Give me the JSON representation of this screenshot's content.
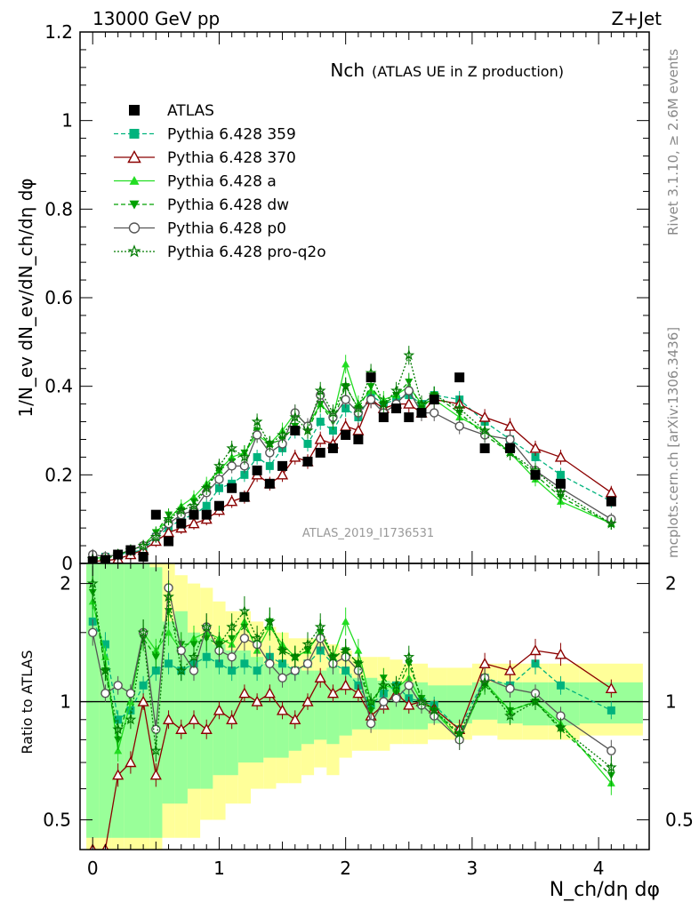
{
  "header": {
    "left": "13000 GeV pp",
    "right": "Z+Jet"
  },
  "chart_data": {
    "type": "line",
    "title": "Nch",
    "subtitle": "(ATLAS UE in Z production)",
    "xlabel": "N_ch/dη dφ",
    "ylabel_main": "1/N_ev dN_ev/dN_ch/dη dφ",
    "ylabel_ratio": "Ratio to ATLAS",
    "xlim": [
      -0.1,
      4.4
    ],
    "ylim_main": [
      0,
      1.2
    ],
    "ylim_ratio": [
      0.42,
      2.25
    ],
    "ratio_scale": "log",
    "xticks": [
      0,
      1,
      2,
      3,
      4
    ],
    "yticks_main": [
      0,
      0.2,
      0.4,
      0.6,
      0.8,
      1,
      1.2
    ],
    "ytick_labels_main": [
      "0",
      "0.2",
      "0.4",
      "0.6",
      "0.8",
      "1",
      "1.2"
    ],
    "yticks_ratio": [
      0.5,
      1,
      2
    ],
    "legend_position": "top-left",
    "analysis_id": "ATLAS_2019_I1736531",
    "side_text_upper": "Rivet 3.1.10, ≥ 2.6M events",
    "side_text_lower": "mcplots.cern.ch [arXiv:1306.3436]",
    "x": [
      0.0,
      0.1,
      0.2,
      0.3,
      0.4,
      0.5,
      0.6,
      0.7,
      0.8,
      0.9,
      1.0,
      1.1,
      1.2,
      1.3,
      1.4,
      1.5,
      1.6,
      1.7,
      1.8,
      1.9,
      2.0,
      2.1,
      2.2,
      2.3,
      2.4,
      2.5,
      2.6,
      2.7,
      2.9,
      3.1,
      3.3,
      3.5,
      3.7,
      4.1
    ],
    "data": {
      "name": "ATLAS",
      "color": "#000000",
      "values": [
        0.005,
        0.008,
        0.02,
        0.03,
        0.015,
        0.11,
        0.05,
        0.09,
        0.11,
        0.11,
        0.13,
        0.17,
        0.15,
        0.21,
        0.18,
        0.22,
        0.3,
        0.23,
        0.25,
        0.26,
        0.29,
        0.28,
        0.42,
        0.33,
        0.35,
        0.33,
        0.34,
        0.37,
        0.42,
        0.26,
        0.26,
        0.2,
        0.18,
        0.14
      ]
    },
    "series": [
      {
        "name": "Pythia 6.428 359",
        "color": "#00b37d",
        "marker": "square",
        "dash": "5,3",
        "values": [
          0.01,
          0.015,
          0.02,
          0.025,
          0.03,
          0.06,
          0.08,
          0.1,
          0.11,
          0.13,
          0.17,
          0.18,
          0.2,
          0.24,
          0.22,
          0.26,
          0.3,
          0.27,
          0.32,
          0.3,
          0.35,
          0.33,
          0.38,
          0.36,
          0.37,
          0.38,
          0.36,
          0.38,
          0.37,
          0.32,
          0.28,
          0.24,
          0.2,
          0.14
        ],
        "ratio": [
          1.6,
          1.4,
          0.9,
          0.95,
          1.1,
          1.2,
          1.25,
          1.2,
          1.25,
          1.3,
          1.25,
          1.2,
          1.25,
          1.2,
          1.3,
          1.25,
          1.2,
          1.25,
          1.35,
          1.25,
          1.2,
          1.1,
          0.98,
          1.05,
          1.1,
          1.02,
          1.0,
          0.98,
          0.85,
          1.15,
          1.1,
          1.25,
          1.1,
          0.95
        ]
      },
      {
        "name": "Pythia 6.428 370",
        "color": "#8b0000",
        "marker": "triangle-open",
        "dash": "",
        "values": [
          0.005,
          0.006,
          0.01,
          0.02,
          0.03,
          0.05,
          0.07,
          0.08,
          0.09,
          0.1,
          0.12,
          0.14,
          0.15,
          0.2,
          0.18,
          0.2,
          0.24,
          0.23,
          0.28,
          0.27,
          0.31,
          0.3,
          0.37,
          0.35,
          0.36,
          0.36,
          0.34,
          0.37,
          0.36,
          0.33,
          0.31,
          0.26,
          0.24,
          0.16
        ],
        "ratio": [
          0.3,
          0.35,
          0.65,
          0.7,
          1.0,
          0.65,
          0.9,
          0.85,
          0.9,
          0.85,
          0.95,
          0.9,
          1.05,
          1.0,
          1.05,
          0.95,
          0.9,
          1.0,
          1.15,
          1.05,
          1.1,
          1.05,
          0.92,
          0.98,
          1.05,
          0.98,
          1.0,
          0.96,
          0.85,
          1.25,
          1.2,
          1.35,
          1.32,
          1.08
        ]
      },
      {
        "name": "Pythia 6.428 a",
        "color": "#22dd22",
        "marker": "triangle",
        "dash": "",
        "values": [
          0.01,
          0.015,
          0.02,
          0.03,
          0.04,
          0.07,
          0.1,
          0.13,
          0.15,
          0.18,
          0.21,
          0.24,
          0.25,
          0.29,
          0.27,
          0.3,
          0.34,
          0.31,
          0.36,
          0.33,
          0.45,
          0.36,
          0.39,
          0.37,
          0.38,
          0.4,
          0.36,
          0.37,
          0.33,
          0.3,
          0.25,
          0.19,
          0.14,
          0.09
        ],
        "ratio": [
          1.8,
          1.3,
          0.75,
          1.0,
          1.5,
          1.35,
          1.5,
          1.35,
          1.45,
          1.5,
          1.45,
          1.4,
          1.6,
          1.35,
          1.55,
          1.4,
          1.3,
          1.35,
          1.5,
          1.3,
          1.6,
          1.35,
          1.0,
          1.1,
          1.08,
          1.15,
          1.0,
          0.95,
          0.8,
          1.12,
          0.95,
          1.0,
          0.88,
          0.62
        ]
      },
      {
        "name": "Pythia 6.428 dw",
        "color": "#00a000",
        "marker": "triangle-down",
        "dash": "5,3",
        "values": [
          0.005,
          0.01,
          0.02,
          0.03,
          0.04,
          0.07,
          0.11,
          0.12,
          0.14,
          0.17,
          0.21,
          0.23,
          0.25,
          0.3,
          0.27,
          0.28,
          0.31,
          0.3,
          0.36,
          0.32,
          0.4,
          0.35,
          0.4,
          0.36,
          0.38,
          0.41,
          0.35,
          0.38,
          0.34,
          0.29,
          0.25,
          0.2,
          0.15,
          0.09
        ],
        "ratio": [
          1.9,
          1.2,
          0.8,
          1.05,
          1.45,
          1.3,
          1.7,
          1.4,
          1.4,
          1.45,
          1.4,
          1.45,
          1.55,
          1.4,
          1.6,
          1.35,
          1.3,
          1.35,
          1.5,
          1.3,
          1.35,
          1.25,
          0.95,
          1.15,
          1.05,
          1.25,
          1.02,
          0.95,
          0.82,
          1.1,
          0.95,
          1.0,
          0.85,
          0.65
        ]
      },
      {
        "name": "Pythia 6.428 p0",
        "color": "#555555",
        "marker": "circle-open",
        "dash": "",
        "values": [
          0.02,
          0.015,
          0.02,
          0.03,
          0.04,
          0.06,
          0.09,
          0.11,
          0.12,
          0.16,
          0.19,
          0.22,
          0.22,
          0.29,
          0.25,
          0.27,
          0.34,
          0.31,
          0.38,
          0.33,
          0.37,
          0.34,
          0.37,
          0.34,
          0.36,
          0.39,
          0.34,
          0.34,
          0.31,
          0.29,
          0.28,
          0.21,
          0.17,
          0.1
        ],
        "ratio": [
          1.5,
          1.05,
          1.1,
          1.05,
          1.5,
          0.85,
          1.95,
          1.35,
          1.2,
          1.55,
          1.35,
          1.3,
          1.45,
          1.4,
          1.25,
          1.15,
          1.2,
          1.25,
          1.45,
          1.25,
          1.3,
          1.2,
          0.88,
          1.0,
          1.02,
          1.1,
          0.98,
          0.92,
          0.8,
          1.15,
          1.08,
          1.05,
          0.92,
          0.75
        ]
      },
      {
        "name": "Pythia 6.428 pro-q2o",
        "color": "#007a00",
        "marker": "star",
        "dash": "2,2",
        "values": [
          0.01,
          0.01,
          0.02,
          0.03,
          0.04,
          0.06,
          0.1,
          0.12,
          0.13,
          0.17,
          0.22,
          0.26,
          0.24,
          0.32,
          0.27,
          0.29,
          0.33,
          0.3,
          0.39,
          0.34,
          0.4,
          0.35,
          0.43,
          0.36,
          0.39,
          0.47,
          0.36,
          0.38,
          0.35,
          0.3,
          0.25,
          0.21,
          0.16,
          0.09
        ],
        "ratio": [
          2.0,
          1.2,
          0.85,
          0.9,
          1.5,
          0.75,
          1.85,
          1.2,
          1.3,
          1.55,
          1.4,
          1.55,
          1.7,
          1.45,
          1.6,
          1.35,
          1.3,
          1.4,
          1.55,
          1.3,
          1.35,
          1.25,
          1.0,
          1.1,
          1.1,
          1.3,
          1.0,
          0.95,
          0.83,
          1.12,
          0.92,
          1.0,
          0.86,
          0.68
        ]
      }
    ],
    "bands": {
      "x_edges": [
        -0.05,
        0.05,
        0.15,
        0.25,
        0.35,
        0.45,
        0.55,
        0.65,
        0.75,
        0.85,
        0.95,
        1.05,
        1.15,
        1.25,
        1.35,
        1.45,
        1.55,
        1.65,
        1.75,
        1.85,
        1.95,
        2.05,
        2.15,
        2.25,
        2.35,
        2.45,
        2.55,
        2.65,
        2.8,
        3.0,
        3.2,
        3.4,
        3.6,
        3.85,
        4.35
      ],
      "green_low": [
        0.45,
        0.45,
        0.45,
        0.45,
        0.45,
        0.45,
        0.55,
        0.55,
        0.6,
        0.6,
        0.65,
        0.65,
        0.7,
        0.7,
        0.72,
        0.72,
        0.75,
        0.78,
        0.8,
        0.78,
        0.82,
        0.85,
        0.85,
        0.85,
        0.85,
        0.85,
        0.85,
        0.88,
        0.88,
        0.9,
        0.88,
        0.87,
        0.87,
        0.88
      ],
      "green_high": [
        2.25,
        2.25,
        2.25,
        2.25,
        2.25,
        2.2,
        1.6,
        1.7,
        1.5,
        1.45,
        1.4,
        1.35,
        1.35,
        1.3,
        1.25,
        1.25,
        1.22,
        1.2,
        1.2,
        1.22,
        1.18,
        1.15,
        1.15,
        1.13,
        1.12,
        1.12,
        1.12,
        1.1,
        1.1,
        1.12,
        1.12,
        1.12,
        1.12,
        1.12
      ],
      "yellow_low": [
        0.42,
        0.42,
        0.42,
        0.42,
        0.42,
        0.42,
        0.45,
        0.45,
        0.45,
        0.5,
        0.5,
        0.55,
        0.55,
        0.6,
        0.6,
        0.62,
        0.62,
        0.65,
        0.68,
        0.65,
        0.72,
        0.75,
        0.75,
        0.75,
        0.78,
        0.78,
        0.78,
        0.8,
        0.8,
        0.82,
        0.8,
        0.8,
        0.8,
        0.82
      ],
      "yellow_high": [
        2.25,
        2.25,
        2.25,
        2.25,
        2.25,
        2.25,
        2.25,
        2.1,
        2.0,
        1.95,
        1.8,
        1.7,
        1.7,
        1.6,
        1.55,
        1.5,
        1.45,
        1.45,
        1.45,
        1.4,
        1.35,
        1.3,
        1.3,
        1.3,
        1.28,
        1.25,
        1.25,
        1.22,
        1.22,
        1.25,
        1.25,
        1.25,
        1.25,
        1.25
      ]
    }
  }
}
